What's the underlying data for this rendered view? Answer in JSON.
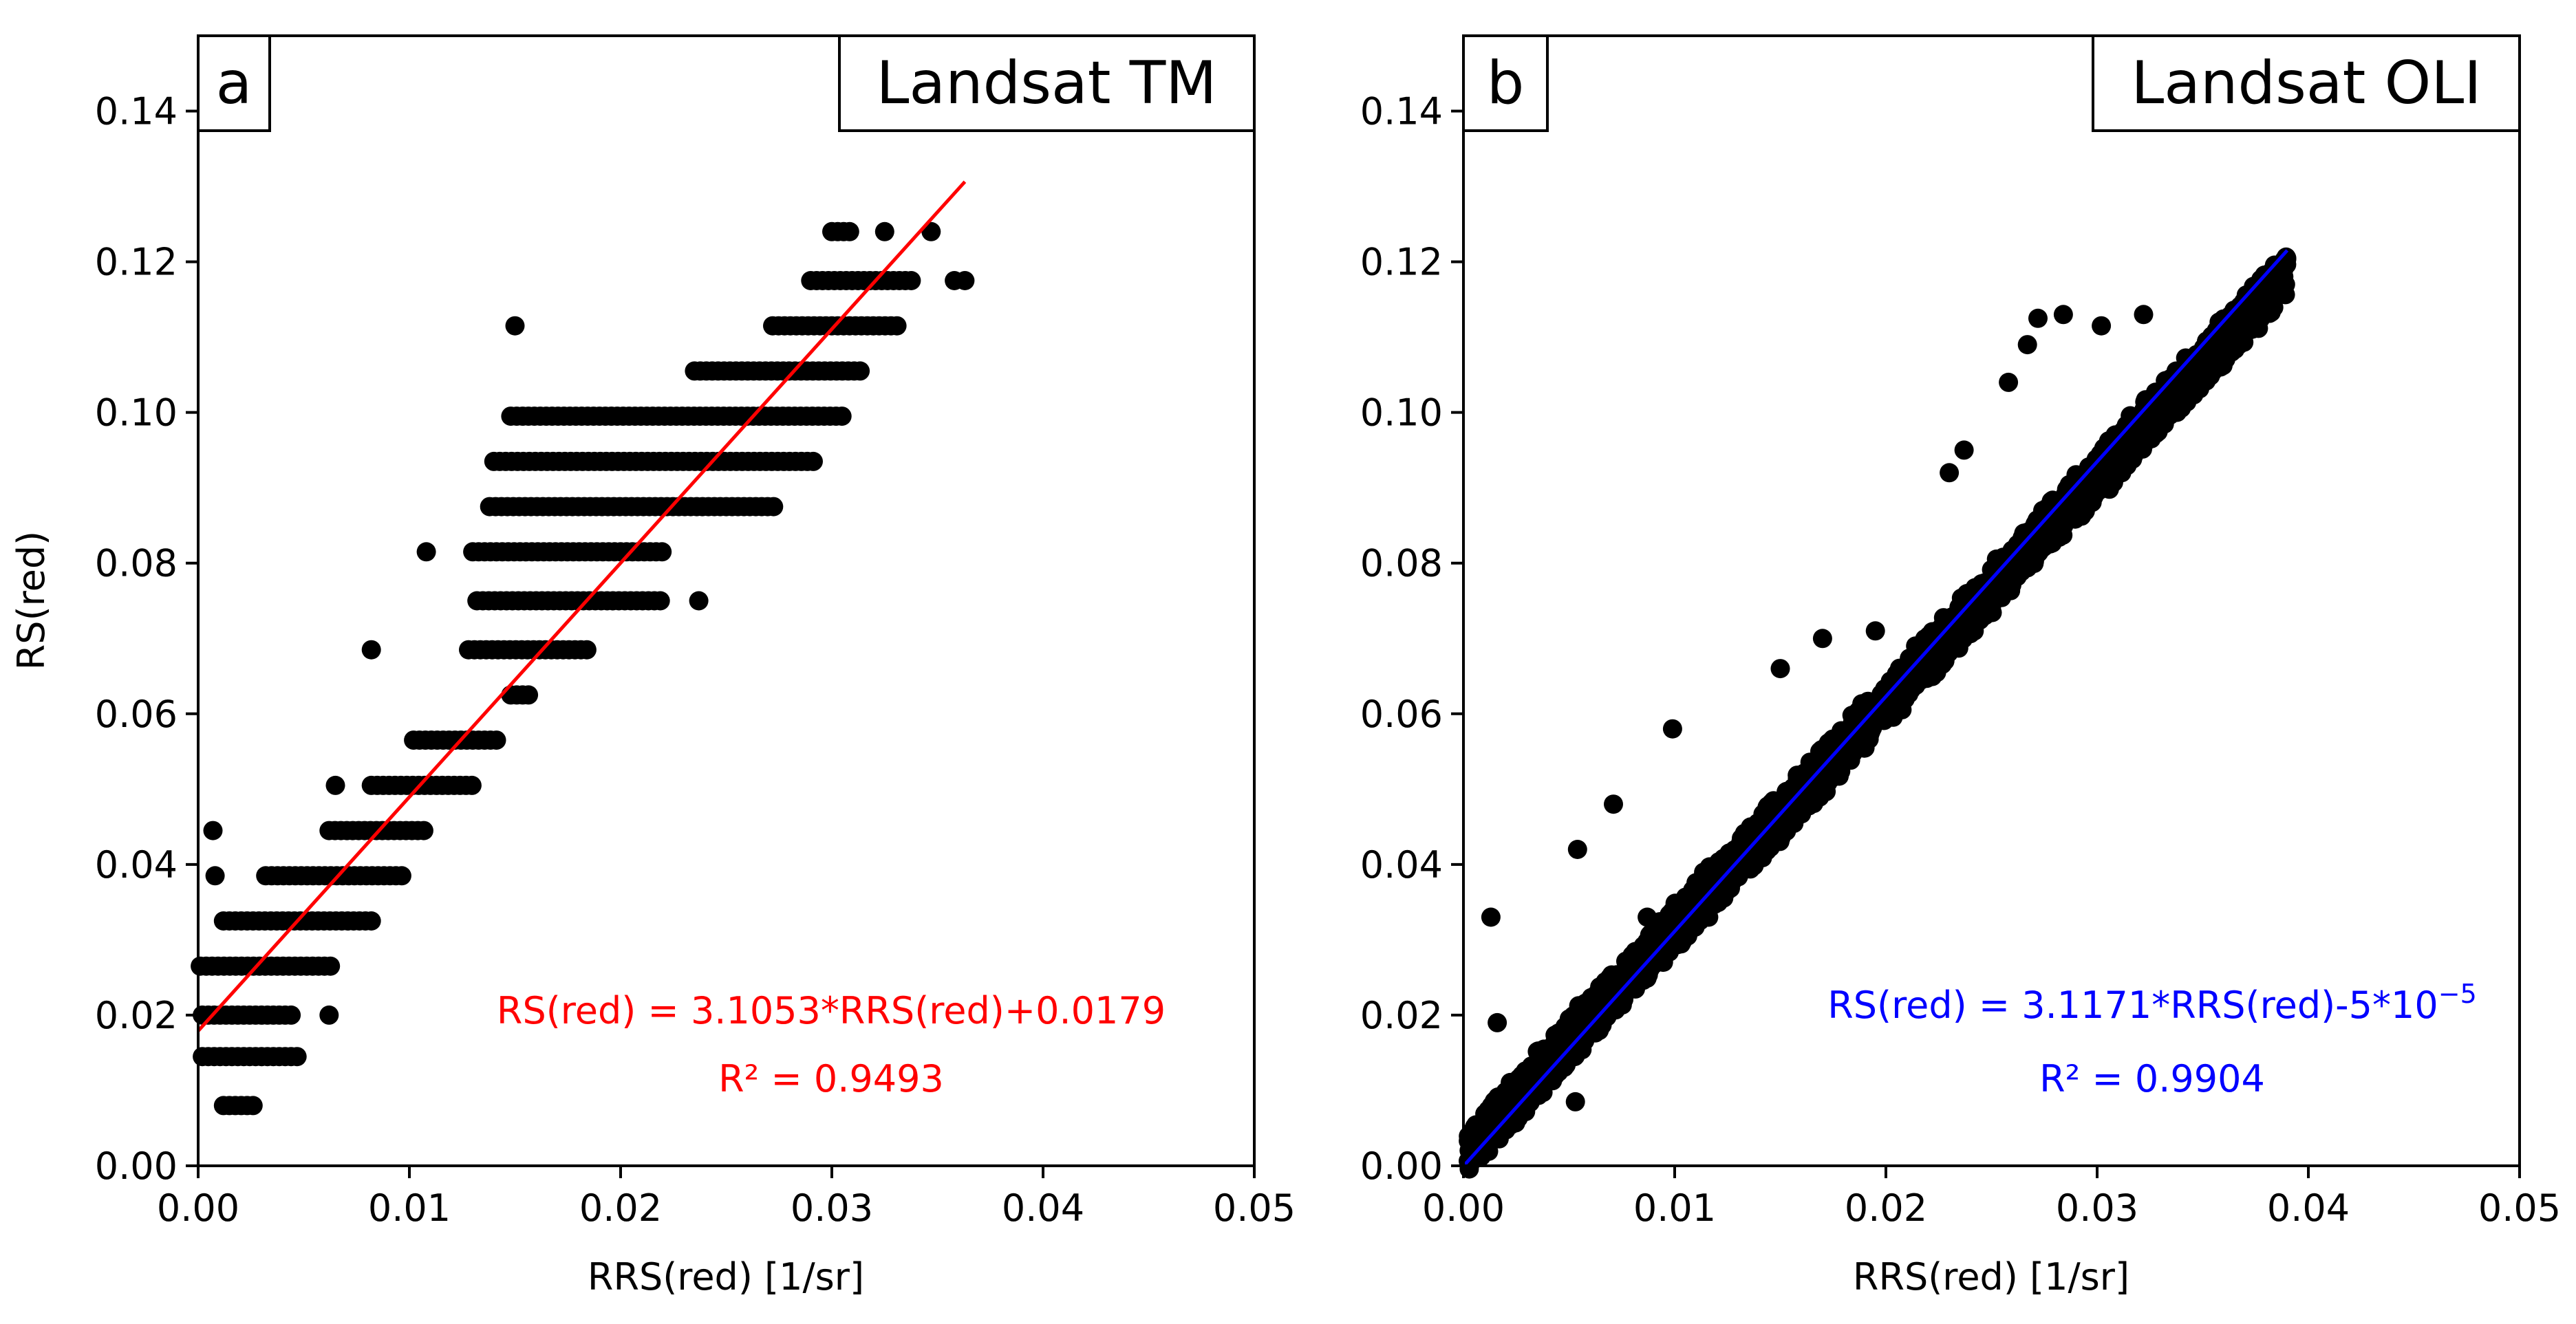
{
  "figure": {
    "panels": [
      "a",
      "b"
    ]
  },
  "chart_data": [
    {
      "type": "scatter",
      "panel_label": "a",
      "title": "Landsat TM",
      "xlabel": "RRS(red) [1/sr]",
      "ylabel": "RS(red)",
      "xlim": [
        0.0,
        0.05
      ],
      "ylim": [
        0.0,
        0.15
      ],
      "xticks": [
        0.0,
        0.01,
        0.02,
        0.03,
        0.04,
        0.05
      ],
      "xtick_labels": [
        "0.00",
        "0.01",
        "0.02",
        "0.03",
        "0.04",
        "0.05"
      ],
      "yticks": [
        0.0,
        0.02,
        0.04,
        0.06,
        0.08,
        0.1,
        0.12,
        0.14
      ],
      "ytick_labels": [
        "0.00",
        "0.02",
        "0.04",
        "0.06",
        "0.08",
        "0.10",
        "0.12",
        "0.14"
      ],
      "marker_color": "#000000",
      "fit_color": "#ff0000",
      "fit": {
        "slope": 3.1053,
        "intercept": 0.0179,
        "x_range": [
          0.0,
          0.0363
        ]
      },
      "equation": "RS(red) = 3.1053*RRS(red)+0.0179",
      "r2": "R² = 0.9493",
      "points_layout": "quantized",
      "clusters": [
        {
          "y": 0.008,
          "x": [
            0.0012,
            0.0026
          ]
        },
        {
          "y": 0.0145,
          "x": [
            0.0002,
            0.0047
          ]
        },
        {
          "y": 0.02,
          "x": [
            0.0002,
            0.0044
          ],
          "extra": [
            0.0062
          ]
        },
        {
          "y": 0.0265,
          "x": [
            0.0001,
            0.0063
          ]
        },
        {
          "y": 0.0325,
          "x": [
            0.0012,
            0.0082
          ]
        },
        {
          "y": 0.0385,
          "x": [
            0.0032,
            0.0098
          ],
          "extra": [
            0.0008
          ]
        },
        {
          "y": 0.0445,
          "x": [
            0.0062,
            0.0108
          ],
          "extra": [
            0.0007
          ]
        },
        {
          "y": 0.0505,
          "x": [
            0.0082,
            0.013
          ],
          "extra": [
            0.0065
          ]
        },
        {
          "y": 0.0565,
          "x": [
            0.0102,
            0.0143
          ]
        },
        {
          "y": 0.0625,
          "x": [
            0.0148,
            0.0158
          ]
        },
        {
          "y": 0.0685,
          "x": [
            0.0128,
            0.0185
          ],
          "extra": [
            0.0082
          ]
        },
        {
          "y": 0.075,
          "x": [
            0.0132,
            0.022
          ],
          "extra": [
            0.0237
          ]
        },
        {
          "y": 0.0815,
          "x": [
            0.013,
            0.022
          ],
          "extra": [
            0.0108
          ]
        },
        {
          "y": 0.0875,
          "x": [
            0.0138,
            0.0275
          ]
        },
        {
          "y": 0.0935,
          "x": [
            0.014,
            0.0292
          ]
        },
        {
          "y": 0.0995,
          "x": [
            0.0148,
            0.0305
          ]
        },
        {
          "y": 0.1055,
          "x": [
            0.0235,
            0.0315
          ]
        },
        {
          "y": 0.1115,
          "x": [
            0.0272,
            0.0333
          ],
          "extra": [
            0.015
          ]
        },
        {
          "y": 0.1175,
          "x": [
            0.029,
            0.034
          ],
          "extra": [
            0.0358,
            0.0363
          ]
        },
        {
          "y": 0.124,
          "x": [
            0.03,
            0.031
          ],
          "extra": [
            0.0325,
            0.0347
          ]
        }
      ]
    },
    {
      "type": "scatter",
      "panel_label": "b",
      "title": "Landsat OLI",
      "xlabel": "RRS(red) [1/sr]",
      "ylabel": "",
      "xlim": [
        0.0,
        0.05
      ],
      "ylim": [
        0.0,
        0.15
      ],
      "xticks": [
        0.0,
        0.01,
        0.02,
        0.03,
        0.04,
        0.05
      ],
      "xtick_labels": [
        "0.00",
        "0.01",
        "0.02",
        "0.03",
        "0.04",
        "0.05"
      ],
      "yticks": [
        0.0,
        0.02,
        0.04,
        0.06,
        0.08,
        0.1,
        0.12,
        0.14
      ],
      "ytick_labels": [
        "0.00",
        "0.02",
        "0.04",
        "0.06",
        "0.08",
        "0.10",
        "0.12",
        "0.14"
      ],
      "marker_color": "#000000",
      "fit_color": "#0000ff",
      "fit": {
        "slope": 3.1171,
        "intercept": -5e-05,
        "x_range": [
          0.0,
          0.039
        ]
      },
      "equation_main": "RS(red) = 3.1171*RRS(red)-5*10",
      "equation_exp": "−5",
      "r2": "R² = 0.9904",
      "points_layout": "band",
      "band": {
        "x_range": [
          0.0002,
          0.039
        ],
        "slope": 3.0,
        "intercept": 0.0015,
        "spread": 0.0035
      },
      "outliers": [
        {
          "x": 0.0013,
          "y": 0.033
        },
        {
          "x": 0.0016,
          "y": 0.019
        },
        {
          "x": 0.0054,
          "y": 0.042
        },
        {
          "x": 0.0071,
          "y": 0.048
        },
        {
          "x": 0.0099,
          "y": 0.058
        },
        {
          "x": 0.0053,
          "y": 0.0085
        },
        {
          "x": 0.017,
          "y": 0.07
        },
        {
          "x": 0.0195,
          "y": 0.071
        },
        {
          "x": 0.023,
          "y": 0.092
        },
        {
          "x": 0.0237,
          "y": 0.095
        },
        {
          "x": 0.0258,
          "y": 0.104
        },
        {
          "x": 0.0267,
          "y": 0.109
        },
        {
          "x": 0.0272,
          "y": 0.1125
        },
        {
          "x": 0.0284,
          "y": 0.113
        },
        {
          "x": 0.0302,
          "y": 0.1115
        },
        {
          "x": 0.0322,
          "y": 0.113
        },
        {
          "x": 0.0087,
          "y": 0.033
        },
        {
          "x": 0.015,
          "y": 0.066
        }
      ]
    }
  ]
}
